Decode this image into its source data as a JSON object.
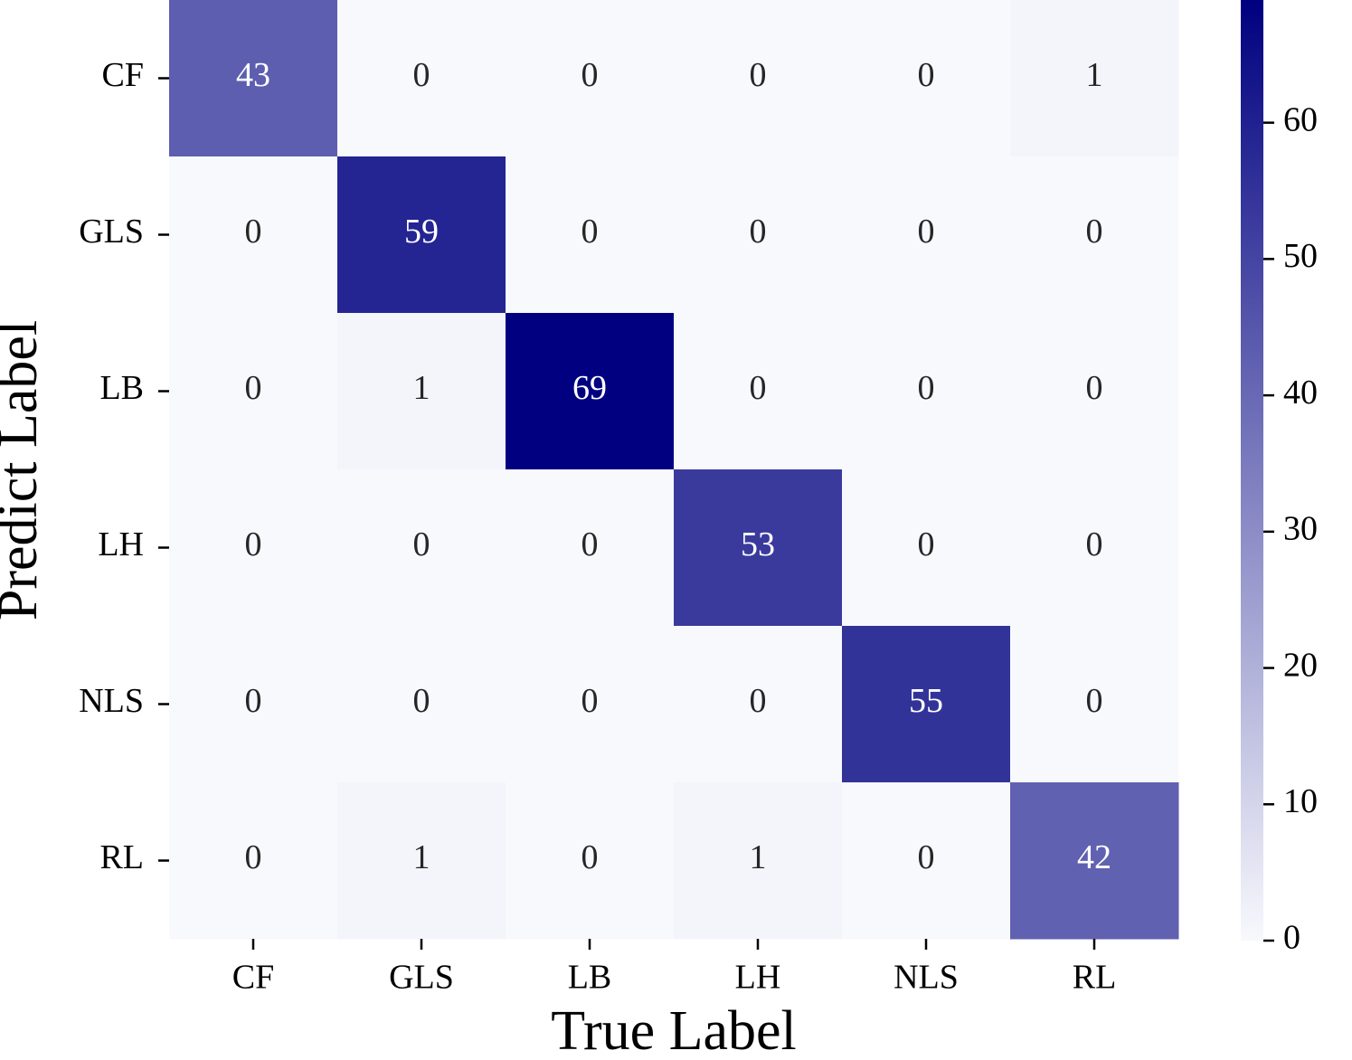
{
  "chart_data": {
    "type": "heatmap",
    "xlabel": "True Label",
    "ylabel": "Predict Label",
    "x_categories": [
      "CF",
      "GLS",
      "LB",
      "LH",
      "NLS",
      "RL"
    ],
    "y_categories": [
      "CF",
      "GLS",
      "LB",
      "LH",
      "NLS",
      "RL"
    ],
    "values": [
      [
        43,
        0,
        0,
        0,
        0,
        1
      ],
      [
        0,
        59,
        0,
        0,
        0,
        0
      ],
      [
        0,
        1,
        69,
        0,
        0,
        0
      ],
      [
        0,
        0,
        0,
        53,
        0,
        0
      ],
      [
        0,
        0,
        0,
        0,
        55,
        0
      ],
      [
        0,
        1,
        0,
        1,
        0,
        42
      ]
    ],
    "colormap": [
      "#f8f9fd",
      "#000080"
    ],
    "clim": [
      0,
      69
    ],
    "cticks": [
      0,
      10,
      20,
      30,
      40,
      50,
      60
    ]
  }
}
